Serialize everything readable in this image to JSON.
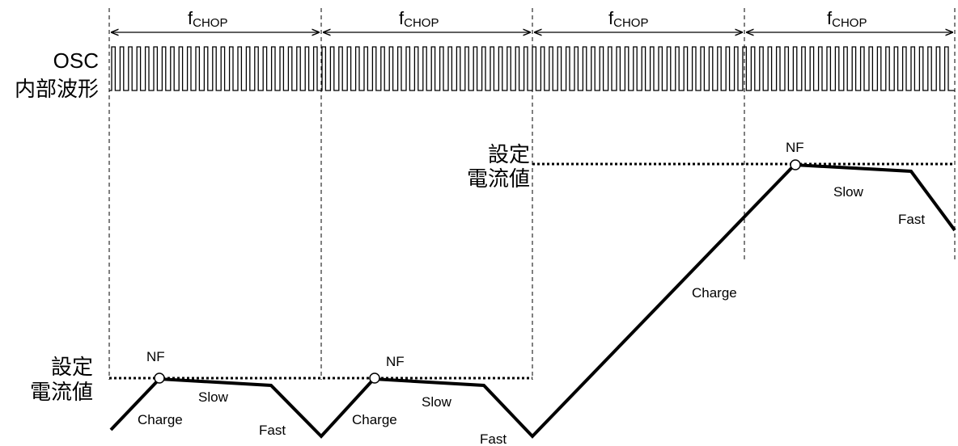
{
  "period_label": {
    "main": "f",
    "sub": "CHOP"
  },
  "osc_label": {
    "line1": "OSC",
    "line2": "内部波形"
  },
  "set_current_label": {
    "line1": "設定",
    "line2": "電流値"
  },
  "markers": {
    "nf": "NF",
    "charge": "Charge",
    "slow": "Slow",
    "fast": "Fast"
  },
  "colors": {
    "line": "#000000",
    "background": "#ffffff"
  }
}
